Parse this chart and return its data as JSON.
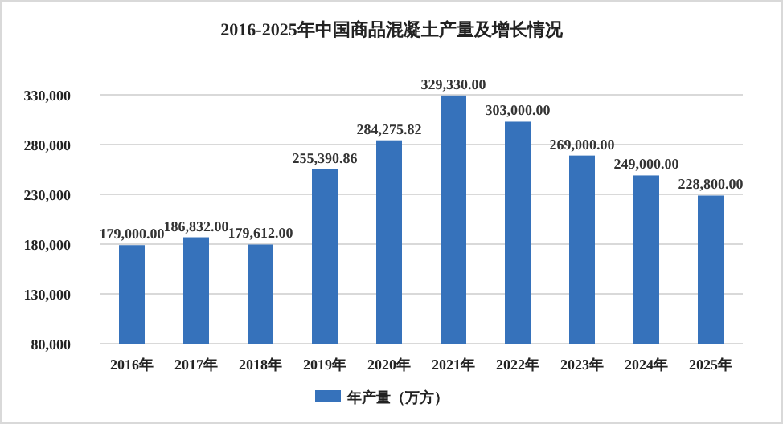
{
  "chart_data": {
    "type": "bar",
    "title": "2016-2025年中国商品混凝土产量及增长情况",
    "categories": [
      "2016年",
      "2017年",
      "2018年",
      "2019年",
      "2020年",
      "2021年",
      "2022年",
      "2023年",
      "2024年",
      "2025年"
    ],
    "series": [
      {
        "name": "年产量（万方）",
        "color": "#3672bb",
        "values": [
          179000.0,
          186832.0,
          179612.0,
          255390.86,
          284275.82,
          329330.0,
          303000.0,
          269000.0,
          249000.0,
          228800.0
        ],
        "value_labels": [
          "179,000.00",
          "186,832.00",
          "179,612.00",
          "255,390.86",
          "284,275.82",
          "329,330.00",
          "303,000.00",
          "269,000.00",
          "249,000.00",
          "228,800.00"
        ]
      }
    ],
    "ylim": [
      80000,
      330000
    ],
    "yticks": [
      {
        "value": 80000,
        "label": "80,000"
      },
      {
        "value": 130000,
        "label": "130,000"
      },
      {
        "value": 180000,
        "label": "180,000"
      },
      {
        "value": 230000,
        "label": "230,000"
      },
      {
        "value": 280000,
        "label": "280,000"
      },
      {
        "value": 330000,
        "label": "330,000"
      }
    ],
    "grid": "y",
    "legend": "bottom"
  }
}
